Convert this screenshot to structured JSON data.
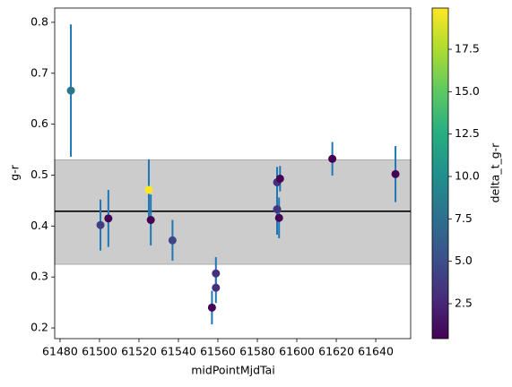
{
  "chart_data": {
    "type": "scatter",
    "x_label": "midPointMjdTai",
    "y_label": "g-r",
    "colorbar_label": "delta_t_g-r",
    "x": [
      61485.5,
      61500.5,
      61504.5,
      61525,
      61526,
      61537,
      61557,
      61559,
      61559,
      61590,
      61590,
      61591.5,
      61591,
      61618,
      61650
    ],
    "values": [
      0.666,
      0.402,
      0.415,
      0.471,
      0.412,
      0.372,
      0.24,
      0.307,
      0.279,
      0.486,
      0.433,
      0.493,
      0.416,
      0.532,
      0.502
    ],
    "errors": [
      0.13,
      0.05,
      0.056,
      0.06,
      0.05,
      0.04,
      0.033,
      0.032,
      0.03,
      0.03,
      0.05,
      0.025,
      0.04,
      0.033,
      0.055
    ],
    "color_values": [
      8,
      4,
      0.5,
      20,
      0.5,
      4.5,
      0.5,
      3,
      3,
      3,
      3.5,
      0.5,
      0.5,
      0.5,
      0.5
    ],
    "colormap": "viridis",
    "errorbar_color": "#1f77b4",
    "hline": 0.429,
    "band": [
      0.325,
      0.53
    ],
    "band_color": "#cccccc",
    "hline_color": "#000000",
    "xlim": [
      61477.3,
      61657.7
    ],
    "ylim": [
      0.179,
      0.828
    ],
    "clim": [
      0.44,
      19.93
    ],
    "xticks": [
      61480,
      61500,
      61520,
      61540,
      61560,
      61580,
      61600,
      61620,
      61640
    ],
    "yticks": [
      0.2,
      0.3,
      0.4,
      0.5,
      0.6,
      0.7,
      0.8
    ],
    "cticks": [
      2.5,
      {
        "value": 5,
        "label": "5.0"
      },
      7.5,
      {
        "value": 10,
        "label": "10.0"
      },
      12.5,
      {
        "value": 15,
        "label": "15.0"
      },
      17.5
    ]
  }
}
